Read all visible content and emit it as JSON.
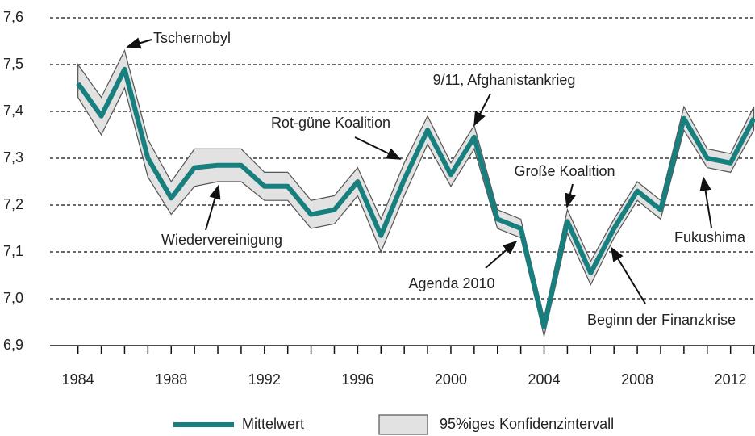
{
  "chart_data": {
    "type": "line",
    "x": [
      1984,
      1985,
      1986,
      1987,
      1988,
      1989,
      1990,
      1991,
      1992,
      1993,
      1994,
      1995,
      1996,
      1997,
      1998,
      1999,
      2000,
      2001,
      2002,
      2003,
      2004,
      2005,
      2006,
      2007,
      2008,
      2009,
      2010,
      2011,
      2012,
      2013
    ],
    "series": [
      {
        "name": "Mittelwert",
        "color": "#17807e",
        "values": [
          7.46,
          7.39,
          7.49,
          7.3,
          7.215,
          7.28,
          7.285,
          7.285,
          7.24,
          7.24,
          7.18,
          7.19,
          7.25,
          7.135,
          7.255,
          7.36,
          7.265,
          7.345,
          7.17,
          7.15,
          6.94,
          7.165,
          7.055,
          7.15,
          7.23,
          7.19,
          7.385,
          7.3,
          7.29,
          7.385
        ]
      },
      {
        "name": "95%iges Konfidenzintervall",
        "color": "#e2e2e2",
        "type": "band",
        "upper": [
          7.5,
          7.43,
          7.53,
          7.34,
          7.25,
          7.32,
          7.32,
          7.32,
          7.27,
          7.27,
          7.21,
          7.22,
          7.28,
          7.17,
          7.29,
          7.39,
          7.29,
          7.37,
          7.19,
          7.17,
          6.96,
          7.19,
          7.08,
          7.17,
          7.25,
          7.21,
          7.41,
          7.32,
          7.31,
          7.41
        ],
        "lower": [
          7.43,
          7.35,
          7.45,
          7.26,
          7.18,
          7.24,
          7.25,
          7.25,
          7.21,
          7.21,
          7.15,
          7.16,
          7.22,
          7.1,
          7.22,
          7.33,
          7.24,
          7.32,
          7.15,
          7.13,
          6.92,
          7.14,
          7.03,
          7.13,
          7.21,
          7.17,
          7.36,
          7.28,
          7.27,
          7.36
        ]
      }
    ],
    "xlim": [
      1982.8,
      2013.05
    ],
    "xticks": [
      1984,
      1988,
      1992,
      1996,
      2000,
      2004,
      2008,
      2012
    ],
    "ylim": [
      6.9,
      7.6
    ],
    "yticks": [
      {
        "value": 6.9,
        "label": "6,9"
      },
      {
        "value": 7.0,
        "label": "7,0"
      },
      {
        "value": 7.1,
        "label": "7,1"
      },
      {
        "value": 7.2,
        "label": "7,2"
      },
      {
        "value": 7.3,
        "label": "7,3"
      },
      {
        "value": 7.4,
        "label": "7,4"
      },
      {
        "value": 7.5,
        "label": "7,5"
      },
      {
        "value": 7.6,
        "label": "7,6"
      }
    ],
    "grid": true,
    "annotations": [
      "Tschernobyl",
      "9/11, Afghanistankrieg",
      "Rot-güne Koalition",
      "Große Koalition",
      "Wiedervereinigung",
      "Fukushima",
      "Agenda 2010",
      "Beginn der Finanzkrise"
    ]
  }
}
